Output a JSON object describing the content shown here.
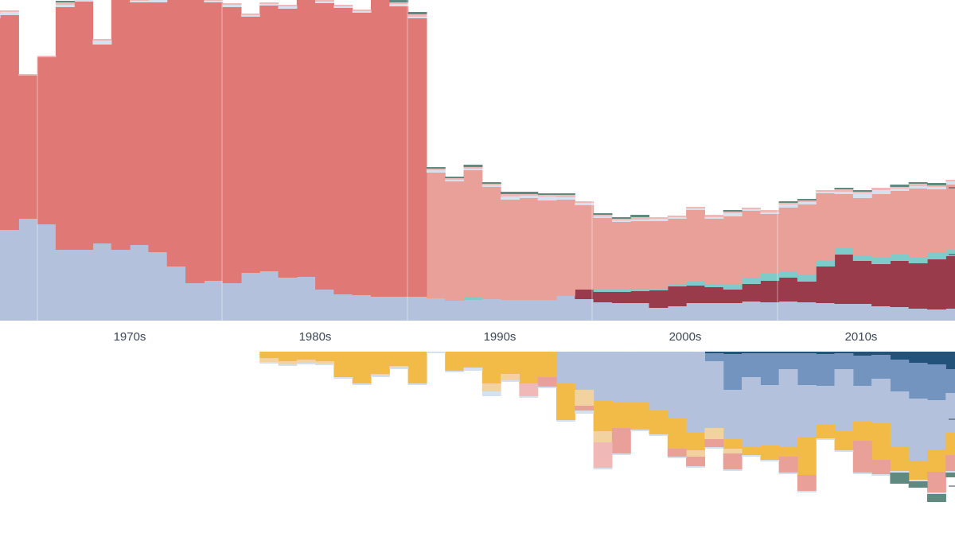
{
  "colors": {
    "red": "#e07975",
    "salmon": "#e8a098",
    "crimson": "#9a3b4b",
    "lavender": "#b3c1dc",
    "lightblue": "#d6e1ef",
    "steelblue": "#7294be",
    "navy": "#22527a",
    "teal": "#7ecbca",
    "darkteal": "#5e8a80",
    "pink": "#f0b8b6",
    "olive": "#aab54e",
    "gold": "#f2bb48",
    "peach": "#f2d29e",
    "grayline": "#3b6070"
  },
  "chart_data": {
    "type": "area",
    "title": "",
    "xlabel": "",
    "ylabel": "",
    "x_tick_labels": [
      "1970s",
      "1980s",
      "1990s",
      "2000s",
      "2010s"
    ],
    "x": [
      1965,
      1966,
      1967,
      1968,
      1969,
      1970,
      1971,
      1972,
      1973,
      1974,
      1975,
      1976,
      1977,
      1978,
      1979,
      1980,
      1981,
      1982,
      1983,
      1984,
      1985,
      1986,
      1987,
      1988,
      1989,
      1990,
      1991,
      1992,
      1993,
      1994,
      1995,
      1996,
      1997,
      1998,
      1999,
      2000,
      2001,
      2002,
      2003,
      2004,
      2005,
      2006,
      2007,
      2008,
      2009,
      2010,
      2011,
      2012,
      2013,
      2014,
      2015,
      2016,
      2017,
      2018,
      2019,
      2020,
      2021,
      2022
    ],
    "grid": false,
    "upper_series": [
      {
        "color_key": "lavender",
        "values": [
          120,
          114,
          128,
          121,
          89,
          89,
          97,
          89,
          95,
          86,
          68,
          47,
          50,
          47,
          60,
          62,
          54,
          55,
          39,
          33,
          32,
          30,
          30,
          30,
          28,
          25,
          26,
          27,
          26,
          26,
          26,
          31,
          27,
          23,
          22,
          22,
          16,
          18,
          22,
          22,
          22,
          24,
          23,
          24,
          23,
          22,
          21,
          21,
          18,
          17,
          15,
          14,
          15,
          16,
          14,
          13,
          14,
          12
        ]
      },
      {
        "color_key": "crimson",
        "values": [
          0,
          0,
          0,
          0,
          0,
          0,
          0,
          0,
          0,
          0,
          0,
          0,
          0,
          0,
          0,
          0,
          0,
          0,
          0,
          0,
          0,
          0,
          0,
          0,
          0,
          0,
          0,
          0,
          0,
          0,
          0,
          0,
          12,
          13,
          14,
          15,
          22,
          25,
          22,
          20,
          17,
          22,
          27,
          30,
          26,
          46,
          62,
          54,
          53,
          58,
          57,
          63,
          66,
          63,
          70,
          78,
          75,
          78
        ]
      },
      {
        "color_key": "teal",
        "values": [
          0,
          0,
          0,
          0,
          0,
          0,
          0,
          0,
          0,
          0,
          0,
          0,
          0,
          0,
          0,
          0,
          0,
          0,
          0,
          0,
          0,
          0,
          0,
          0,
          0,
          0,
          3,
          0,
          0,
          0,
          0,
          0,
          0,
          3,
          3,
          3,
          2,
          3,
          5,
          4,
          6,
          8,
          9,
          8,
          9,
          8,
          8,
          7,
          8,
          8,
          8,
          8,
          8,
          8,
          7,
          6,
          6,
          6
        ]
      },
      {
        "color_key": "salmon",
        "values": [
          0,
          0,
          0,
          0,
          0,
          0,
          0,
          0,
          0,
          0,
          0,
          0,
          0,
          0,
          0,
          0,
          0,
          0,
          0,
          0,
          0,
          0,
          0,
          0,
          158,
          150,
          160,
          141,
          126,
          128,
          125,
          121,
          106,
          90,
          85,
          85,
          85,
          82,
          90,
          82,
          86,
          84,
          75,
          80,
          88,
          84,
          68,
          72,
          80,
          80,
          86,
          80,
          82,
          79,
          67,
          50,
          55,
          61
        ]
      },
      {
        "color_key": "red",
        "values": [
          260,
          270,
          180,
          210,
          305,
          312,
          250,
          320,
          305,
          314,
          352,
          367,
          350,
          347,
          322,
          334,
          338,
          360,
          360,
          360,
          355,
          404,
          365,
          350,
          0,
          0,
          0,
          0,
          0,
          0,
          0,
          0,
          0,
          0,
          0,
          0,
          0,
          0,
          0,
          0,
          0,
          0,
          0,
          0,
          0,
          0,
          0,
          0,
          0,
          0,
          0,
          0,
          0,
          0,
          0,
          0,
          0,
          0
        ]
      },
      {
        "color_key": "lightblue",
        "values": [
          6,
          4,
          0,
          0,
          3,
          3,
          5,
          2,
          2,
          3,
          5,
          3,
          2,
          3,
          2,
          2,
          3,
          3,
          2,
          2,
          2,
          3,
          3,
          2,
          3,
          2,
          2,
          2,
          4,
          3,
          5,
          3,
          3,
          2,
          2,
          2,
          3,
          2,
          2,
          2,
          4,
          2,
          2,
          4,
          3,
          2,
          3,
          6,
          5,
          3,
          3,
          3,
          4,
          3,
          3,
          3,
          4,
          2
        ]
      },
      {
        "color_key": "pink",
        "values": [
          2,
          2,
          2,
          2,
          3,
          2,
          2,
          3,
          2,
          2,
          2,
          3,
          2,
          2,
          2,
          2,
          2,
          2,
          2,
          2,
          2,
          2,
          2,
          3,
          2,
          2,
          2,
          2,
          3,
          2,
          2,
          3,
          2,
          2,
          2,
          3,
          2,
          2,
          2,
          3,
          2,
          2,
          3,
          2,
          2,
          2,
          3,
          2,
          3,
          2,
          3,
          2,
          2,
          3,
          2,
          3,
          2,
          2
        ]
      },
      {
        "color_key": "darkteal",
        "values": [
          0,
          0,
          0,
          0,
          2,
          2,
          0,
          0,
          0,
          0,
          0,
          0,
          0,
          0,
          0,
          0,
          0,
          0,
          0,
          0,
          0,
          3,
          3,
          3,
          2,
          2,
          3,
          2,
          3,
          3,
          2,
          2,
          0,
          2,
          2,
          3,
          0,
          0,
          0,
          0,
          2,
          0,
          0,
          2,
          2,
          0,
          2,
          2,
          0,
          3,
          2,
          3,
          0,
          2,
          0,
          2,
          3,
          4
        ]
      }
    ],
    "upper_low_series": [
      {
        "color_key": "olive",
        "values": [
          0,
          0,
          4,
          5,
          6,
          4,
          0,
          6,
          4,
          6,
          0,
          0,
          0,
          2,
          2,
          2,
          0,
          0,
          0,
          0,
          0,
          0,
          2,
          0,
          0,
          0,
          0,
          0,
          0,
          0,
          0,
          0,
          0,
          0,
          0,
          0,
          0,
          0,
          0,
          0,
          0,
          0,
          0,
          0,
          0,
          0,
          0,
          0,
          0,
          0,
          0,
          0,
          0,
          0,
          0,
          0,
          0,
          0
        ]
      },
      {
        "color_key": "peach",
        "values": [
          2,
          2,
          8,
          6,
          2,
          2,
          0,
          8,
          10,
          2,
          2,
          2,
          2,
          2,
          4,
          0,
          2,
          2,
          4,
          2,
          0,
          0,
          2,
          0,
          0,
          0,
          0,
          0,
          0,
          2,
          0,
          0,
          0,
          0,
          0,
          0,
          0,
          0,
          0,
          0,
          0,
          2,
          2,
          0,
          0,
          0,
          2,
          0,
          0,
          0,
          0,
          0,
          0,
          0,
          0,
          0,
          0,
          0
        ]
      }
    ],
    "lower_series": [
      {
        "color_key": "navy",
        "values": [
          0,
          0,
          0,
          0,
          0,
          0,
          0,
          0,
          0,
          0,
          0,
          0,
          0,
          0,
          0,
          0,
          0,
          0,
          0,
          0,
          0,
          0,
          0,
          0,
          0,
          0,
          0,
          0,
          0,
          0,
          0,
          0,
          0,
          0,
          0,
          0,
          0,
          0,
          0,
          2,
          3,
          2,
          2,
          2,
          2,
          3,
          2,
          5,
          4,
          10,
          14,
          16,
          22,
          26,
          28,
          46,
          58,
          62
        ]
      },
      {
        "color_key": "steelblue",
        "values": [
          0,
          0,
          0,
          0,
          0,
          0,
          0,
          0,
          0,
          0,
          0,
          0,
          0,
          0,
          0,
          0,
          0,
          0,
          0,
          0,
          0,
          0,
          0,
          0,
          0,
          0,
          0,
          0,
          0,
          0,
          0,
          0,
          0,
          0,
          0,
          0,
          0,
          0,
          0,
          10,
          45,
          30,
          40,
          20,
          40,
          40,
          20,
          38,
          30,
          40,
          45,
          45,
          30,
          40,
          28,
          0,
          12,
          0
        ]
      },
      {
        "color_key": "lavender",
        "values": [
          0,
          0,
          0,
          0,
          0,
          0,
          0,
          0,
          0,
          0,
          0,
          0,
          0,
          0,
          0,
          0,
          0,
          0,
          0,
          0,
          0,
          0,
          0,
          0,
          0,
          0,
          0,
          0,
          0,
          0,
          0,
          40,
          48,
          62,
          64,
          64,
          74,
          84,
          102,
          84,
          62,
          88,
          76,
          98,
          65,
          48,
          78,
          45,
          56,
          70,
          78,
          62,
          50,
          40,
          40,
          0,
          8,
          0
        ]
      },
      {
        "color_key": "gold",
        "values": [
          0,
          0,
          0,
          0,
          0,
          0,
          0,
          0,
          0,
          0,
          0,
          0,
          0,
          0,
          0,
          8,
          12,
          10,
          12,
          32,
          40,
          28,
          18,
          40,
          0,
          24,
          20,
          40,
          28,
          40,
          32,
          46,
          0,
          38,
          32,
          34,
          30,
          38,
          22,
          0,
          12,
          10,
          18,
          12,
          48,
          18,
          24,
          24,
          46,
          30,
          24,
          28,
          28,
          30,
          42,
          38,
          32,
          28
        ]
      },
      {
        "color_key": "peach",
        "values": [
          0,
          0,
          0,
          0,
          0,
          0,
          0,
          0,
          0,
          0,
          0,
          0,
          0,
          0,
          0,
          5,
          4,
          4,
          3,
          0,
          0,
          2,
          2,
          0,
          0,
          0,
          0,
          10,
          8,
          0,
          0,
          0,
          20,
          14,
          0,
          0,
          0,
          0,
          8,
          14,
          6,
          0,
          0,
          0,
          0,
          0,
          0,
          0,
          0,
          0,
          0,
          0,
          0,
          0,
          0,
          0,
          0,
          0
        ]
      },
      {
        "color_key": "salmon",
        "values": [
          0,
          0,
          0,
          0,
          0,
          0,
          0,
          0,
          0,
          0,
          0,
          0,
          0,
          0,
          0,
          0,
          0,
          0,
          0,
          0,
          0,
          0,
          0,
          0,
          0,
          0,
          0,
          0,
          0,
          0,
          12,
          0,
          6,
          0,
          32,
          0,
          0,
          10,
          12,
          10,
          20,
          0,
          0,
          20,
          20,
          0,
          0,
          40,
          18,
          0,
          0,
          26,
          20,
          22,
          10,
          0,
          22,
          12
        ]
      },
      {
        "color_key": "pink",
        "values": [
          0,
          0,
          0,
          0,
          0,
          0,
          0,
          0,
          0,
          0,
          0,
          0,
          0,
          0,
          0,
          0,
          0,
          0,
          0,
          0,
          0,
          0,
          0,
          0,
          0,
          0,
          0,
          0,
          0,
          16,
          0,
          0,
          0,
          32,
          0,
          0,
          0,
          0,
          0,
          0,
          0,
          0,
          0,
          0,
          0,
          0,
          0,
          0,
          0,
          0,
          0,
          0,
          0,
          0,
          0,
          16,
          0,
          0
        ]
      },
      {
        "color_key": "lightblue",
        "values": [
          0,
          0,
          0,
          0,
          0,
          0,
          0,
          0,
          0,
          0,
          0,
          0,
          0,
          0,
          0,
          2,
          2,
          2,
          2,
          2,
          2,
          2,
          2,
          2,
          2,
          2,
          4,
          6,
          2,
          2,
          2,
          2,
          4,
          2,
          2,
          2,
          2,
          2,
          2,
          2,
          2,
          2,
          2,
          2,
          2,
          2,
          2,
          2,
          2,
          2,
          2,
          2,
          2,
          2,
          2,
          2,
          2,
          2
        ]
      },
      {
        "color_key": "darkteal",
        "values": [
          0,
          0,
          0,
          0,
          0,
          0,
          0,
          0,
          0,
          0,
          0,
          0,
          0,
          0,
          0,
          0,
          0,
          0,
          0,
          0,
          0,
          0,
          0,
          0,
          0,
          0,
          0,
          0,
          0,
          0,
          0,
          0,
          0,
          0,
          0,
          0,
          0,
          0,
          0,
          0,
          0,
          0,
          0,
          0,
          0,
          0,
          0,
          0,
          0,
          14,
          8,
          10,
          6,
          8,
          8,
          16,
          14,
          12
        ]
      }
    ]
  }
}
